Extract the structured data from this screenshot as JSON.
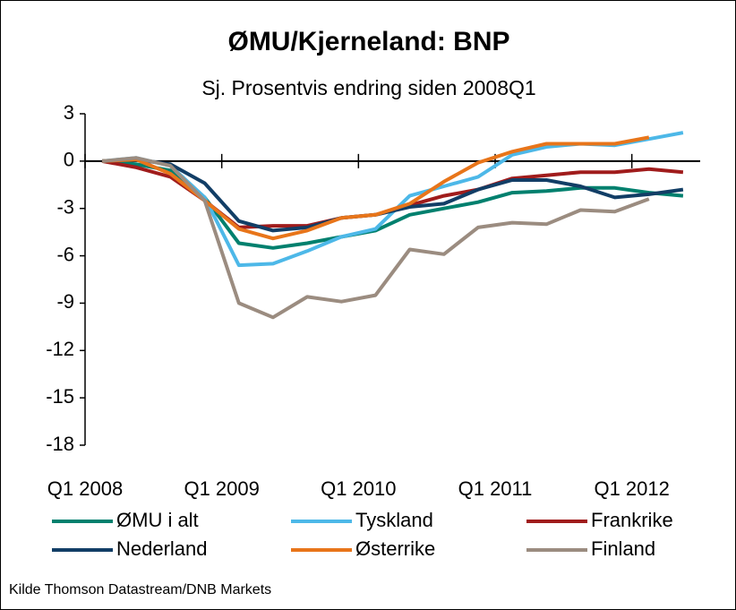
{
  "chart_data": {
    "type": "line",
    "title": "ØMU/Kjerneland: BNP",
    "subtitle": "Sj. Prosentvis endring siden 2008Q1",
    "source": "Kilde Thomson Datastream/DNB Markets",
    "categories": [
      "Q1 2008",
      null,
      null,
      null,
      "Q1 2009",
      null,
      null,
      null,
      "Q1 2010",
      null,
      null,
      null,
      "Q1 2011",
      null,
      null,
      null,
      "Q1 2012",
      null
    ],
    "ylim": [
      -18,
      3
    ],
    "yticks": [
      3,
      0,
      -3,
      -6,
      -9,
      -12,
      -15,
      -18
    ],
    "series": [
      {
        "name": "ØMU i alt",
        "color": "#00806e",
        "values": [
          0,
          -0.2,
          -0.6,
          -2.3,
          -5.2,
          -5.5,
          -5.2,
          -4.8,
          -4.4,
          -3.4,
          -3.0,
          -2.6,
          -2.0,
          -1.9,
          -1.7,
          -1.7,
          -2.0,
          -2.2
        ]
      },
      {
        "name": "Tyskland",
        "color": "#4db8e8",
        "values": [
          0,
          0.2,
          -0.3,
          -2.3,
          -6.6,
          -6.5,
          -5.7,
          -4.8,
          -4.3,
          -2.2,
          -1.6,
          -1.0,
          0.4,
          0.9,
          1.1,
          1.0,
          1.4,
          1.8
        ]
      },
      {
        "name": "Frankrike",
        "color": "#a01c1c",
        "values": [
          0,
          -0.4,
          -1.0,
          -2.5,
          -4.2,
          -4.1,
          -4.1,
          -3.6,
          -3.4,
          -2.8,
          -2.2,
          -1.8,
          -1.1,
          -0.9,
          -0.7,
          -0.7,
          -0.5,
          -0.7
        ]
      },
      {
        "name": "Nederland",
        "color": "#123e66",
        "values": [
          0,
          0.1,
          -0.2,
          -1.4,
          -3.8,
          -4.4,
          -4.2,
          -3.6,
          -3.4,
          -2.9,
          -2.7,
          -1.8,
          -1.2,
          -1.2,
          -1.6,
          -2.3,
          -2.1,
          -1.8
        ]
      },
      {
        "name": "Østerrike",
        "color": "#e8751a",
        "values": [
          0,
          0.1,
          -0.8,
          -2.5,
          -4.3,
          -4.9,
          -4.4,
          -3.6,
          -3.4,
          -2.7,
          -1.3,
          -0.1,
          0.6,
          1.1,
          1.1,
          1.1,
          1.5,
          null
        ]
      },
      {
        "name": "Finland",
        "color": "#9b8c80",
        "values": [
          0,
          0.2,
          -0.3,
          -2.5,
          -9.0,
          -9.9,
          -8.6,
          -8.9,
          -8.5,
          -5.6,
          -5.9,
          -4.2,
          -3.9,
          -4.0,
          -3.1,
          -3.2,
          -2.4,
          null
        ]
      }
    ]
  }
}
